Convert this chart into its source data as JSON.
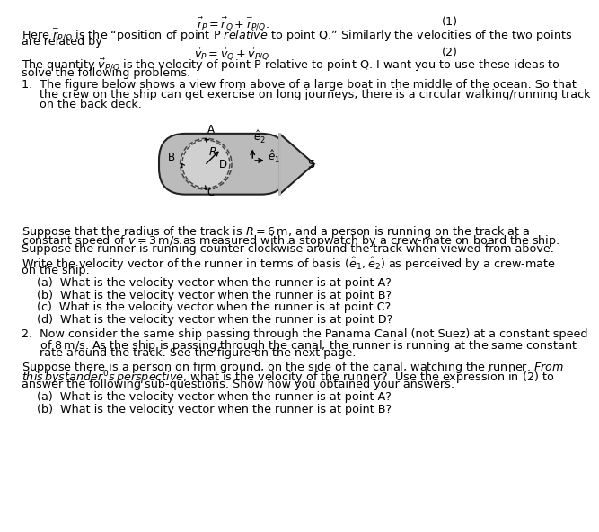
{
  "bg_color": "#ffffff",
  "text_color": "#000000",
  "eq1_center": "$\\vec{r}_P = \\vec{r}_Q + \\vec{r}_{P/Q}.$",
  "eq1_num": "(1)",
  "line1": "Here $\\vec{r}_{P/Q}$ is the “position of point P $\\it{relative}$ to point Q.” Similarly the velocities of the two points",
  "line2": "are related by",
  "eq2_center": "$\\vec{v}_P = \\vec{v}_Q + \\vec{v}_{P/Q}.$",
  "eq2_num": "(2)",
  "line3a": "The quantity $\\vec{v}_{P/Q}$ is the velocity of point P relative to point Q. I want you to use these ideas to",
  "line3b": "solve the following problems.",
  "item1_text_a": "1.  The figure below shows a view from above of a large boat in the middle of the ocean. So that",
  "item1_text_b": "     the crew on the ship can get exercise on long journeys, there is a circular walking/running track",
  "item1_text_c": "     on the back deck.",
  "suppose1a": "Suppose that the radius of the track is $R = 6\\,\\mathrm{m}$, and a person is running on the track at a",
  "suppose1b": "constant speed of $v = 3\\,\\mathrm{m/s}$ as measured with a stopwatch by a crew-mate on board the ship.",
  "suppose1c": "Suppose the runner is running counter-clockwise around the track when viewed from above.",
  "write1a": "Write the velocity vector of the runner in terms of basis $(\\hat{e}_1, \\hat{e}_2)$ as perceived by a crew-mate",
  "write1b": "on the ship.",
  "qa": "(a)  What is the velocity vector when the runner is at point A?",
  "qb": "(b)  What is the velocity vector when the runner is at point B?",
  "qc": "(c)  What is the velocity vector when the runner is at point C?",
  "qd": "(d)  What is the velocity vector when the runner is at point D?",
  "item2_text_a": "2.  Now consider the same ship passing through the Panama Canal (not Suez) at a constant speed",
  "item2_text_b": "     of $8\\,\\mathrm{m/s}$. As the ship is passing through the canal, the runner is running at the same constant",
  "item2_text_c": "     rate around the track. See the figure on the next page.",
  "suppose2a": "Suppose there is a person on firm ground, on the side of the canal, watching the runner. $\\it{From}$",
  "suppose2b": "$\\it{this\\/ bystander's\\/perspective}$, what is the velocity of the runner?  Use the expression in (2) to",
  "suppose2c": "answer the following sub-questions. Show how you obtained your answers.",
  "q2a": "(a)  What is the velocity vector when the runner is at point A?",
  "q2b": "(b)  What is the velocity vector when the runner is at point B?"
}
